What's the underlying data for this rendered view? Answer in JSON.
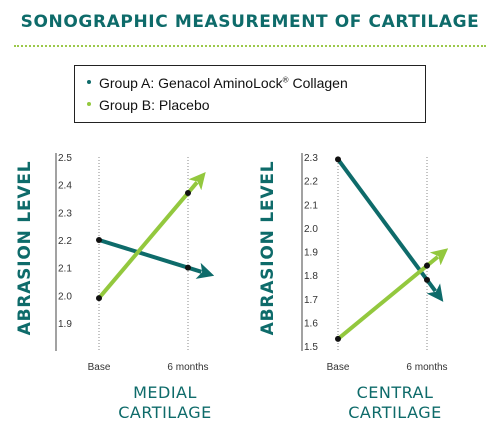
{
  "title": "SONOGRAPHIC MEASUREMENT OF CARTILAGE",
  "legend": {
    "group_a_prefix": "Group A: Genacol AminoLock",
    "group_a_reg": "®",
    "group_a_suffix": " Collagen",
    "group_b": "Group B: Placebo"
  },
  "colors": {
    "group_a": "#0e6b6a",
    "group_b": "#93c83e",
    "title": "#0e6b6a",
    "point": "#111111"
  },
  "chart_data": [
    {
      "type": "line",
      "caption_line1": "MEDIAL",
      "caption_line2": "CARTILAGE",
      "ylabel": "ABRASION LEVEL",
      "categories": [
        "Base",
        "6 months"
      ],
      "yticks": [
        "2.5",
        "2.4",
        "2.3",
        "2.2",
        "2.1",
        "2.0",
        "1.9"
      ],
      "ylim": [
        1.8,
        2.5
      ],
      "series": [
        {
          "name": "Group A: Genacol AminoLock® Collagen",
          "values": [
            2.2,
            2.1
          ]
        },
        {
          "name": "Group B: Placebo",
          "values": [
            1.99,
            2.37
          ]
        }
      ]
    },
    {
      "type": "line",
      "caption_line1": "CENTRAL",
      "caption_line2": "CARTILAGE",
      "ylabel": "ABRASION LEVEL",
      "categories": [
        "Base",
        "6 months"
      ],
      "yticks": [
        "2.3",
        "2.2",
        "2.1",
        "2.0",
        "1.9",
        "1.8",
        "1.7",
        "1.6",
        "1.5"
      ],
      "ylim": [
        1.5,
        2.3
      ],
      "series": [
        {
          "name": "Group A: Genacol AminoLock® Collagen",
          "values": [
            2.29,
            1.78
          ]
        },
        {
          "name": "Group B: Placebo",
          "values": [
            1.53,
            1.84
          ]
        }
      ]
    }
  ]
}
